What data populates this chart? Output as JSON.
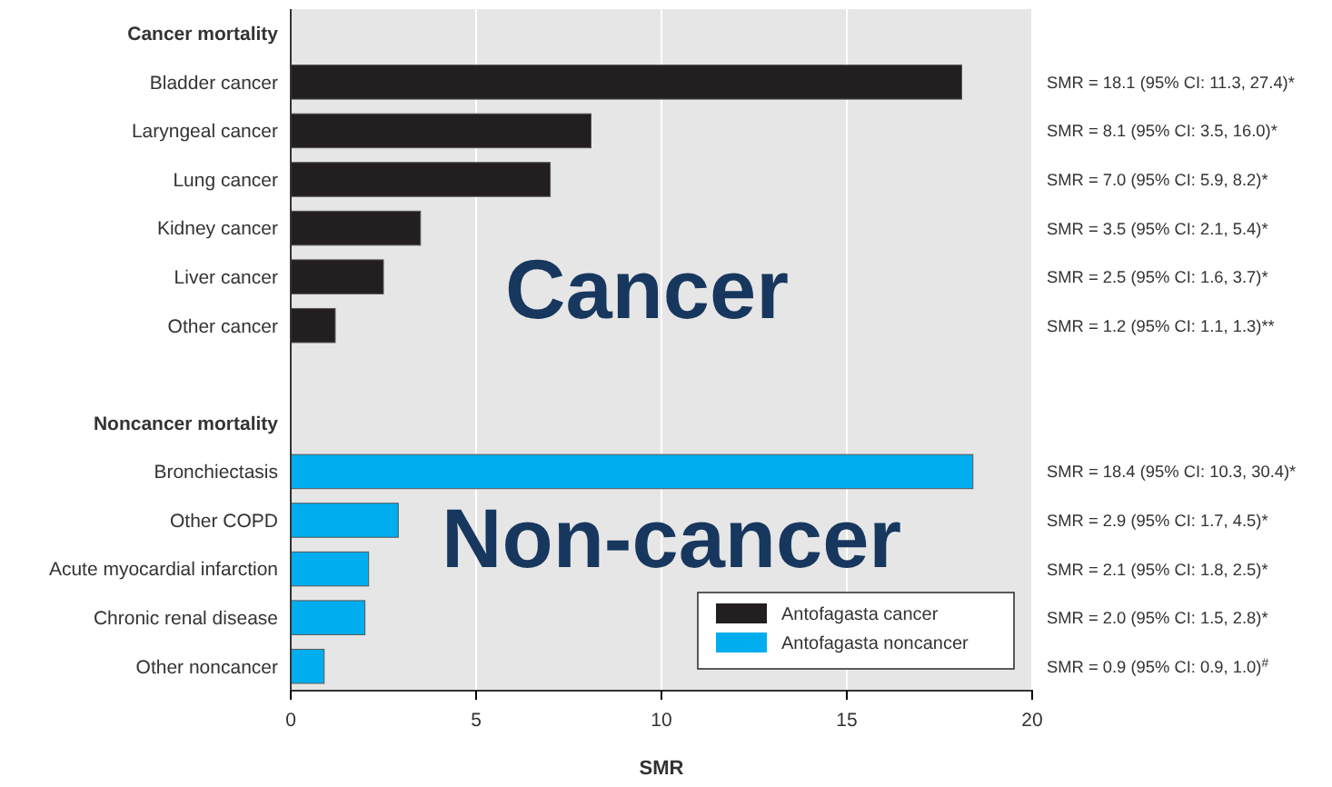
{
  "chart_data": {
    "type": "bar",
    "orientation": "horizontal",
    "xlabel": "SMR",
    "categories": [
      "Cancer mortality",
      "Bladder cancer",
      "Laryngeal cancer",
      "Lung cancer",
      "Kidney cancer",
      "Liver cancer",
      "Other cancer",
      null,
      "Noncancer mortality",
      "Bronchiectasis",
      "Other COPD",
      "Acute myocardial infarction",
      "Chronic renal disease",
      "Other noncancer"
    ],
    "series": [
      {
        "name": "Antofagasta cancer",
        "color": "#231f20",
        "values": [
          null,
          18.1,
          8.1,
          7.0,
          3.5,
          2.5,
          1.2,
          null,
          null,
          null,
          null,
          null,
          null,
          null
        ]
      },
      {
        "name": "Antofagasta noncancer",
        "color": "#00aeef",
        "values": [
          null,
          null,
          null,
          null,
          null,
          null,
          null,
          null,
          null,
          18.4,
          2.9,
          2.1,
          2.0,
          0.9
        ]
      }
    ],
    "xlim": [
      0,
      20
    ],
    "xticks": [
      0,
      5,
      10,
      15,
      20
    ],
    "grid": "x",
    "legend": "bottom right",
    "annotations": [
      "Cancer",
      "Non-cancer",
      "SMR = 18.1 (95% CI: 11.3, 27.4)*",
      "SMR = 8.1 (95% CI: 3.5, 16.0)*",
      "SMR = 7.0 (95% CI: 5.9, 8.2)*",
      "SMR = 3.5 (95% CI: 2.1, 5.4)*",
      "SMR = 2.5 (95% CI: 1.6, 3.7)*",
      "SMR = 1.2 (95% CI: 1.1, 1.3)**",
      "SMR = 18.4 (95% CI: 10.3, 30.4)*",
      "SMR = 2.9 (95% CI: 1.7, 4.5)*",
      "SMR = 2.1 (95% CI: 1.8, 2.5)*",
      "SMR = 2.0 (95% CI: 1.5, 2.8)*",
      "SMR = 0.9 (95% CI: 0.9, 1.0)$^{#}$"
    ]
  }
}
